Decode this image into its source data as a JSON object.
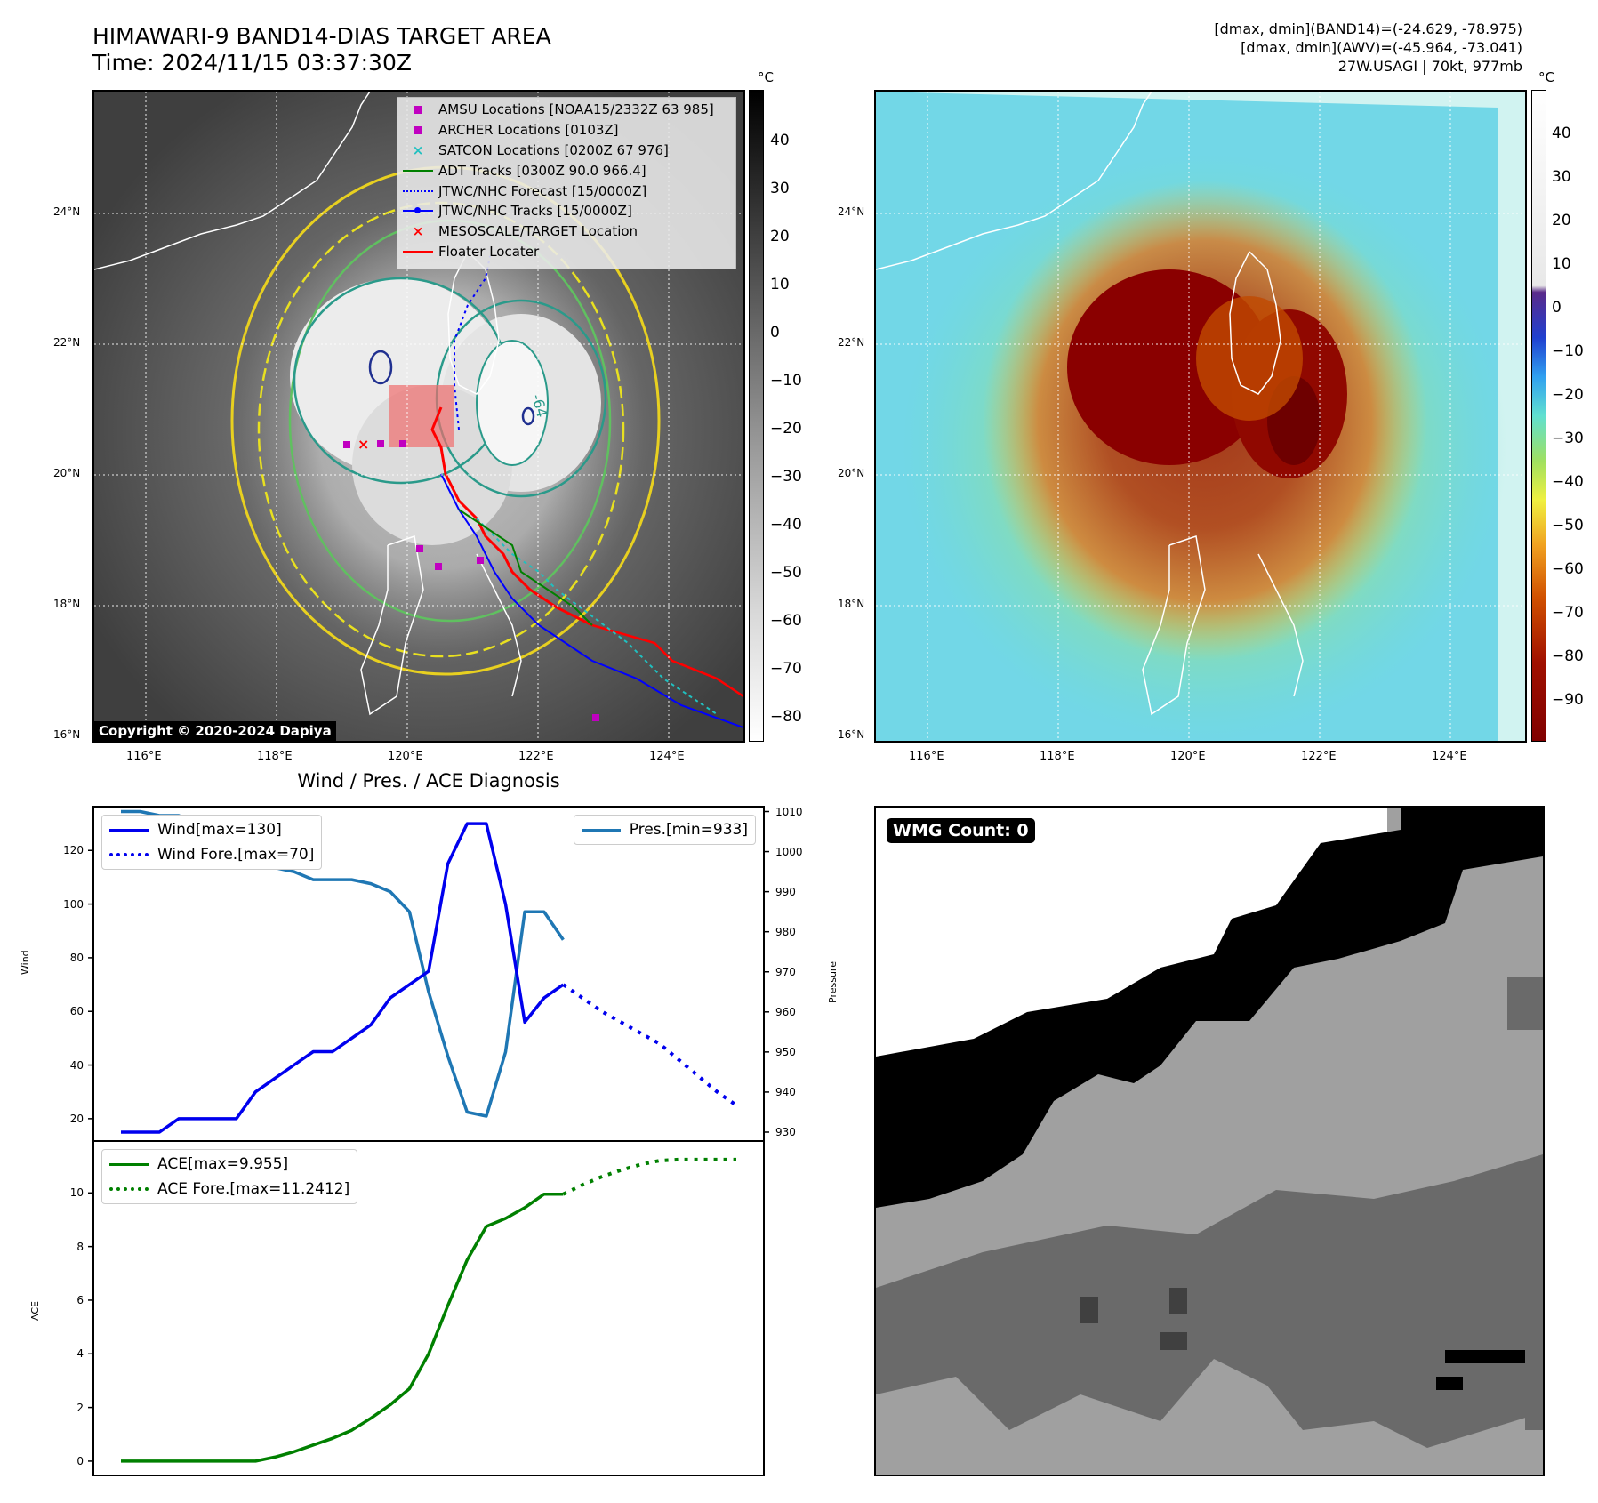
{
  "header": {
    "title_line1": "HIMAWARI-9 BAND14-DIAS TARGET AREA",
    "title_line2": "Time: 2024/11/15 03:37:30Z",
    "info_line1": "[dmax, dmin](BAND14)=(-24.629, -78.975)",
    "info_line2": "[dmax, dmin](AWV)=(-45.964, -73.041)",
    "info_line3": "27W.USAGI | 70kt, 977mb"
  },
  "map": {
    "lat_labels": [
      "24°N",
      "22°N",
      "20°N",
      "18°N",
      "16°N"
    ],
    "lon_labels": [
      "116°E",
      "118°E",
      "120°E",
      "122°E",
      "124°E"
    ],
    "contour_label": "-64",
    "copyright": "Copyright © 2020-2024 Dapiya"
  },
  "colorbar_left": {
    "unit": "°C",
    "ticks": [
      "40",
      "30",
      "20",
      "10",
      "0",
      "−10",
      "−20",
      "−30",
      "−40",
      "−50",
      "−60",
      "−70",
      "−80"
    ]
  },
  "colorbar_right": {
    "unit": "°C",
    "ticks": [
      "40",
      "30",
      "20",
      "10",
      "0",
      "−10",
      "−20",
      "−30",
      "−40",
      "−50",
      "−60",
      "−70",
      "−80",
      "−90"
    ]
  },
  "map_legend": [
    {
      "label": "AMSU Locations [NOAA15/2332Z 63 985]",
      "symbol": "square",
      "color": "#c000c0"
    },
    {
      "label": "ARCHER Locations [0103Z]",
      "symbol": "square",
      "color": "#c000c0"
    },
    {
      "label": "SATCON Locations [0200Z 67 976]",
      "symbol": "x",
      "color": "#20c0c0"
    },
    {
      "label": "ADT Tracks [0300Z 90.0 966.4]",
      "symbol": "line",
      "color": "#008000"
    },
    {
      "label": "JTWC/NHC Forecast [15/0000Z]",
      "symbol": "dotted",
      "color": "#0000ff"
    },
    {
      "label": "JTWC/NHC Tracks [15/0000Z]",
      "symbol": "dotline",
      "color": "#0000ff"
    },
    {
      "label": "MESOSCALE/TARGET Location",
      "symbol": "x",
      "color": "#ff0000"
    },
    {
      "label": "Floater Locater",
      "symbol": "line",
      "color": "#ff0000"
    }
  ],
  "diagnosis_title": "Wind / Pres. / ACE Diagnosis",
  "wmg_label": "WMG Count: 0",
  "chart_data": [
    {
      "type": "line",
      "title": "Wind / Pres. / ACE Diagnosis",
      "ylabel": "Wind",
      "ylabel_right": "Pressure",
      "ylim": [
        12,
        136
      ],
      "ylim_right": [
        928,
        1011
      ],
      "yticks": [
        20,
        40,
        60,
        80,
        100,
        120
      ],
      "yticks_right": [
        930,
        940,
        950,
        960,
        970,
        980,
        990,
        1000,
        1010
      ],
      "x_range": [
        0,
        32
      ],
      "series": [
        {
          "name": "Wind[max=130]",
          "axis": "left",
          "color": "#0000ee",
          "style": "solid",
          "x": [
            0,
            1,
            2,
            3,
            4,
            5,
            6,
            7,
            8,
            9,
            10,
            11,
            12,
            13,
            14,
            15,
            16,
            17,
            18,
            19,
            20,
            21,
            22,
            23
          ],
          "values": [
            15,
            15,
            15,
            20,
            20,
            20,
            20,
            30,
            35,
            40,
            45,
            45,
            50,
            55,
            65,
            70,
            75,
            115,
            130,
            130,
            100,
            56,
            65,
            70
          ]
        },
        {
          "name": "Wind Fore.[max=70]",
          "axis": "left",
          "color": "#0000ee",
          "style": "dotted",
          "x": [
            23,
            24,
            25,
            26,
            27,
            28,
            29,
            30,
            31,
            32
          ],
          "values": [
            70,
            65,
            60,
            56,
            52,
            48,
            42,
            36,
            30,
            25
          ]
        },
        {
          "name": "Pres.[min=933]",
          "axis": "right",
          "color": "#1f77b4",
          "style": "solid",
          "x": [
            0,
            1,
            2,
            3,
            4,
            5,
            6,
            7,
            8,
            9,
            10,
            11,
            12,
            13,
            14,
            15,
            16,
            17,
            18,
            19,
            20,
            21,
            22,
            23
          ],
          "values": [
            1010,
            1010,
            1009,
            1009,
            1007,
            1004,
            1002,
            1000,
            996,
            995,
            993,
            993,
            993,
            992,
            990,
            985,
            965,
            949,
            935,
            934,
            950,
            985,
            985,
            978
          ]
        }
      ]
    },
    {
      "type": "line",
      "ylabel": "ACE",
      "ylim": [
        -0.5,
        11.9
      ],
      "yticks": [
        0,
        2,
        4,
        6,
        8,
        10
      ],
      "x_range": [
        0,
        32
      ],
      "series": [
        {
          "name": "ACE[max=9.955]",
          "color": "#008000",
          "style": "solid",
          "x": [
            0,
            1,
            2,
            3,
            4,
            5,
            6,
            7,
            8,
            9,
            10,
            11,
            12,
            13,
            14,
            15,
            16,
            17,
            18,
            19,
            20,
            21,
            22,
            23
          ],
          "values": [
            0,
            0,
            0,
            0,
            0,
            0,
            0,
            0,
            0.15,
            0.35,
            0.6,
            0.85,
            1.15,
            1.6,
            2.1,
            2.7,
            4.0,
            5.8,
            7.5,
            8.75,
            9.05,
            9.45,
            9.955,
            9.955
          ]
        },
        {
          "name": "ACE Fore.[max=11.2412]",
          "color": "#008000",
          "style": "dotted",
          "x": [
            23,
            24,
            25,
            26,
            27,
            28,
            29,
            30,
            31,
            32
          ],
          "values": [
            9.955,
            10.3,
            10.6,
            10.85,
            11.05,
            11.2,
            11.24,
            11.24,
            11.24,
            11.24
          ]
        }
      ]
    }
  ]
}
